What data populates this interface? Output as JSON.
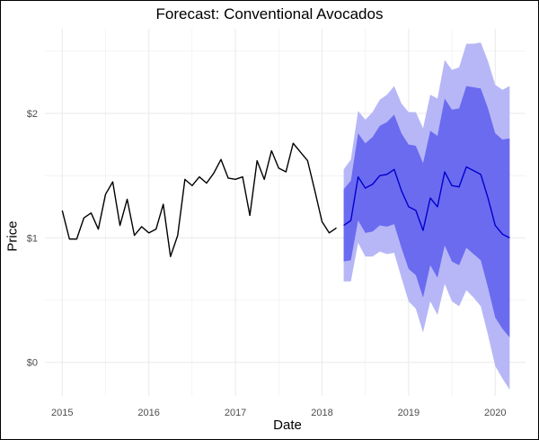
{
  "chart_data": {
    "type": "line",
    "title": "Forecast: Conventional Avocados",
    "xlabel": "Date",
    "ylabel": "Price",
    "x_ticks": [
      "2015",
      "2016",
      "2017",
      "2018",
      "2019",
      "2020"
    ],
    "y_ticks": [
      "$0",
      "$1",
      "$2"
    ],
    "xlim": [
      2014.8,
      2020.35
    ],
    "ylim": [
      -0.27,
      2.68
    ],
    "grid": true,
    "legend": "none",
    "colors": {
      "actual": "#000000",
      "forecast": "#0000cc",
      "band_80": "#6b6bf0",
      "band_95": "#b7b7f7",
      "grid": "#ebebeb"
    },
    "series": [
      {
        "name": "",
        "role": "actual",
        "x": [
          "2015-01",
          "2015-02",
          "2015-03",
          "2015-04",
          "2015-05",
          "2015-06",
          "2015-07",
          "2015-08",
          "2015-09",
          "2015-10",
          "2015-11",
          "2015-12",
          "2016-01",
          "2016-02",
          "2016-03",
          "2016-04",
          "2016-05",
          "2016-06",
          "2016-07",
          "2016-08",
          "2016-09",
          "2016-10",
          "2016-11",
          "2016-12",
          "2017-01",
          "2017-02",
          "2017-03",
          "2017-04",
          "2017-05",
          "2017-06",
          "2017-07",
          "2017-08",
          "2017-09",
          "2017-10",
          "2017-11",
          "2017-12",
          "2018-01",
          "2018-02",
          "2018-03"
        ],
        "values": [
          1.22,
          0.99,
          0.99,
          1.16,
          1.2,
          1.07,
          1.35,
          1.45,
          1.1,
          1.31,
          1.02,
          1.09,
          1.04,
          1.07,
          1.27,
          0.85,
          1.02,
          1.47,
          1.42,
          1.49,
          1.44,
          1.52,
          1.63,
          1.48,
          1.47,
          1.49,
          1.18,
          1.62,
          1.47,
          1.7,
          1.56,
          1.53,
          1.76,
          1.69,
          1.62,
          1.38,
          1.13,
          1.04,
          1.08
        ]
      },
      {
        "name": "",
        "role": "forecast",
        "x": [
          "2018-04",
          "2018-05",
          "2018-06",
          "2018-07",
          "2018-08",
          "2018-09",
          "2018-10",
          "2018-11",
          "2018-12",
          "2019-01",
          "2019-02",
          "2019-03",
          "2019-04",
          "2019-05",
          "2019-06",
          "2019-07",
          "2019-08",
          "2019-09",
          "2019-10",
          "2019-11",
          "2019-12",
          "2020-01",
          "2020-02",
          "2020-03"
        ],
        "values": [
          1.1,
          1.14,
          1.49,
          1.4,
          1.43,
          1.5,
          1.51,
          1.55,
          1.38,
          1.25,
          1.22,
          1.06,
          1.32,
          1.25,
          1.53,
          1.42,
          1.41,
          1.57,
          1.54,
          1.51,
          1.32,
          1.1,
          1.03,
          1.0
        ],
        "lo80": [
          0.81,
          0.82,
          1.14,
          1.04,
          1.05,
          1.1,
          1.09,
          1.11,
          0.92,
          0.75,
          0.7,
          0.52,
          0.78,
          0.68,
          0.94,
          0.81,
          0.78,
          0.92,
          0.87,
          0.82,
          0.6,
          0.36,
          0.27,
          0.2
        ],
        "hi80": [
          1.39,
          1.46,
          1.84,
          1.76,
          1.81,
          1.9,
          1.93,
          1.99,
          1.84,
          1.75,
          1.74,
          1.6,
          1.86,
          1.82,
          2.12,
          2.03,
          2.04,
          2.22,
          2.21,
          2.2,
          2.04,
          1.84,
          1.79,
          1.8
        ],
        "lo95": [
          0.65,
          0.65,
          0.96,
          0.85,
          0.85,
          0.89,
          0.87,
          0.88,
          0.68,
          0.49,
          0.43,
          0.24,
          0.49,
          0.38,
          0.63,
          0.49,
          0.45,
          0.58,
          0.52,
          0.45,
          0.22,
          -0.03,
          -0.13,
          -0.22
        ],
        "hi95": [
          1.55,
          1.63,
          2.02,
          1.95,
          2.01,
          2.11,
          2.15,
          2.22,
          2.08,
          2.01,
          2.01,
          1.88,
          2.15,
          2.12,
          2.43,
          2.35,
          2.37,
          2.56,
          2.56,
          2.57,
          2.42,
          2.23,
          2.19,
          2.22
        ]
      }
    ]
  }
}
